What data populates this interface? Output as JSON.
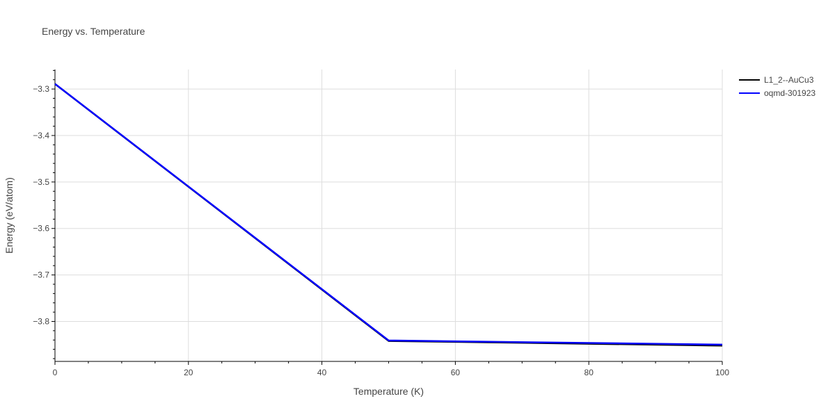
{
  "chart_data": {
    "type": "line",
    "title": "Energy vs. Temperature",
    "xlabel": "Temperature (K)",
    "ylabel": "Energy (eV/atom)",
    "xlim": [
      0,
      100
    ],
    "ylim": [
      -3.886,
      -3.258
    ],
    "xticks": [
      0,
      20,
      40,
      60,
      80,
      100
    ],
    "xtick_labels": [
      "0",
      "20",
      "40",
      "60",
      "80",
      "100"
    ],
    "yticks": [
      -3.3,
      -3.4,
      -3.5,
      -3.6,
      -3.7,
      -3.8
    ],
    "ytick_labels": [
      "−3.3",
      "−3.4",
      "−3.5",
      "−3.6",
      "−3.7",
      "−3.8"
    ],
    "grid": true,
    "legend_position": "top-right",
    "series": [
      {
        "name": "L1_2--AuCu3",
        "color": "#000000",
        "x": [
          0,
          50,
          100
        ],
        "y": [
          -3.289,
          -3.842,
          -3.852
        ]
      },
      {
        "name": "oqmd-301923",
        "color": "#0000ff",
        "x": [
          0,
          50,
          100
        ],
        "y": [
          -3.289,
          -3.841,
          -3.85
        ]
      }
    ]
  }
}
